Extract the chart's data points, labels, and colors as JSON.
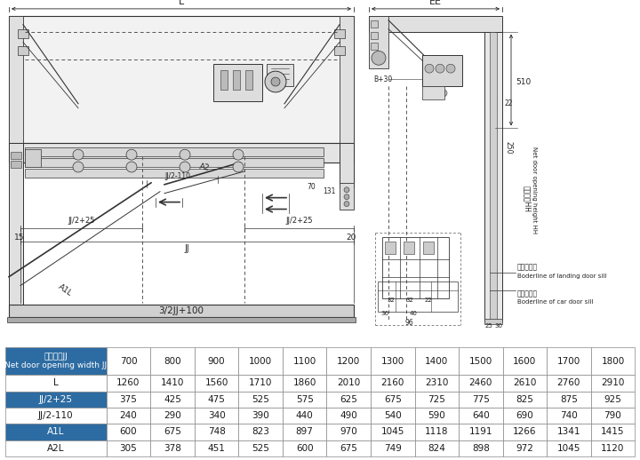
{
  "table_header_bg": "#2d6ca2",
  "table_row_bg_dark": "#2d6ca2",
  "table_row_bg_light": "#ffffff",
  "table_text_light": "#ffffff",
  "table_text_dark": "#1a1a1a",
  "table_border_color": "#999999",
  "col_header_line1": "净开门宽JJ",
  "col_header_line2": "Net door opening width JJ",
  "col_values": [
    "700",
    "800",
    "900",
    "1000",
    "1100",
    "1200",
    "1300",
    "1400",
    "1500",
    "1600",
    "1700",
    "1800"
  ],
  "rows": [
    {
      "label": "L",
      "values": [
        1260,
        1410,
        1560,
        1710,
        1860,
        2010,
        2160,
        2310,
        2460,
        2610,
        2760,
        2910
      ],
      "dark": false
    },
    {
      "label": "JJ/2+25",
      "values": [
        375,
        425,
        475,
        525,
        575,
        625,
        675,
        725,
        775,
        825,
        875,
        925
      ],
      "dark": true
    },
    {
      "label": "JJ/2-110",
      "values": [
        240,
        290,
        340,
        390,
        440,
        490,
        540,
        590,
        640,
        690,
        740,
        790
      ],
      "dark": false
    },
    {
      "label": "A1L",
      "values": [
        600,
        675,
        748,
        823,
        897,
        970,
        1045,
        1118,
        1191,
        1266,
        1341,
        1415
      ],
      "dark": true
    },
    {
      "label": "A2L",
      "values": [
        305,
        378,
        451,
        525,
        600,
        675,
        749,
        824,
        898,
        972,
        1045,
        1120
      ],
      "dark": false
    }
  ],
  "bg_color": "#ffffff",
  "draw_area_color": "#ffffff",
  "line_color": "#333333",
  "dim_color": "#222222",
  "gray_fill": "#e8e8e8",
  "light_gray": "#f2f2f2",
  "dark_gray": "#aaaaaa"
}
